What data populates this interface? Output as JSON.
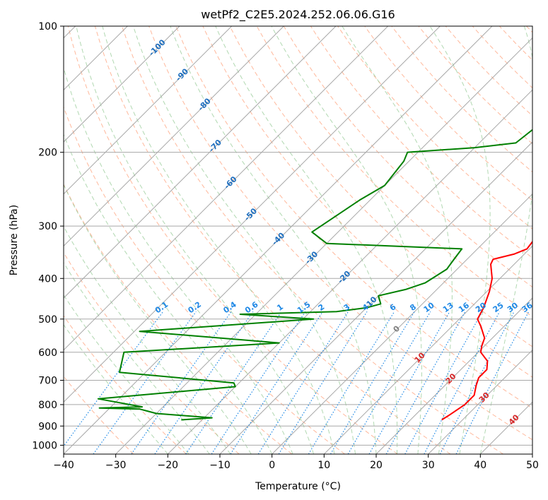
{
  "chart_data": {
    "type": "skew-t",
    "title": "wetPf2_C2E5.2024.252.06.06.G16",
    "xlabel": "Temperature (°C)",
    "ylabel": "Pressure (hPa)",
    "xlim": [
      -40,
      50
    ],
    "ylim": [
      1050,
      100
    ],
    "y_scale": "log",
    "x_ticks": [
      -40,
      -30,
      -20,
      -10,
      0,
      10,
      20,
      30,
      40,
      50
    ],
    "x_tick_labels": [
      "−40",
      "−30",
      "−20",
      "−10",
      "0",
      "10",
      "20",
      "30",
      "40",
      "50"
    ],
    "y_ticks": [
      1000,
      900,
      800,
      700,
      600,
      500,
      400,
      300,
      200,
      100
    ],
    "y_tick_labels": [
      "1000",
      "900",
      "800",
      "700",
      "600",
      "500",
      "400",
      "300",
      "200",
      "100"
    ],
    "grid": true,
    "colors": {
      "temperature": "#ff0000",
      "dewpoint": "#008000",
      "isotherm": "#a8a8a8",
      "dry_adiabat": "#ffa07a",
      "moist_adiabat": "#90c890",
      "mixing_ratio": "#1e88e5",
      "axis": "#000000"
    },
    "series": [
      {
        "points": [
          [
            26.0,
            870
          ],
          [
            26.5,
            850
          ],
          [
            27.5,
            800
          ],
          [
            27.5,
            760
          ],
          [
            26.0,
            720
          ],
          [
            25.0,
            690
          ],
          [
            25.0,
            660
          ],
          [
            23.5,
            630
          ],
          [
            20.5,
            600
          ],
          [
            19.5,
            580
          ],
          [
            18.5,
            555
          ],
          [
            15.5,
            520
          ],
          [
            13.5,
            500
          ],
          [
            12.5,
            470
          ],
          [
            10.5,
            430
          ],
          [
            8.5,
            400
          ],
          [
            5.5,
            370
          ],
          [
            5.0,
            360
          ],
          [
            8.0,
            350
          ],
          [
            9.5,
            340
          ],
          [
            9.0,
            320
          ],
          [
            7.5,
            290
          ],
          [
            6.5,
            260
          ],
          [
            5.5,
            230
          ],
          [
            4.5,
            200
          ],
          [
            3.5,
            175
          ],
          [
            3.0,
            155
          ],
          [
            4.5,
            130
          ],
          [
            7.0,
            120
          ],
          [
            7.5,
            115
          ],
          [
            7.5,
            100
          ]
        ]
      },
      {
        "points": [
          [
            -24.0,
            870
          ],
          [
            -18.5,
            860
          ],
          [
            -30.0,
            840
          ],
          [
            -32.0,
            830
          ],
          [
            -34.0,
            820
          ],
          [
            -42.0,
            815
          ],
          [
            -34.0,
            810
          ],
          [
            -44.0,
            775
          ],
          [
            -20.0,
            725
          ],
          [
            -21.0,
            710
          ],
          [
            -45.0,
            670
          ],
          [
            -48.0,
            600
          ],
          [
            -20.0,
            570
          ],
          [
            -49.0,
            535
          ],
          [
            -18.0,
            500
          ],
          [
            -33.0,
            487
          ],
          [
            -15.0,
            480
          ],
          [
            -10.0,
            470
          ],
          [
            -8.0,
            460
          ],
          [
            -10.0,
            440
          ],
          [
            -6.0,
            425
          ],
          [
            -3.5,
            410
          ],
          [
            -2.0,
            380
          ],
          [
            -2.5,
            360
          ],
          [
            -3.0,
            340
          ],
          [
            -30.0,
            330
          ],
          [
            -35.0,
            310
          ],
          [
            -32.0,
            260
          ],
          [
            -30.0,
            240
          ],
          [
            -31.0,
            210
          ],
          [
            -32.0,
            200
          ],
          [
            -20.0,
            195
          ],
          [
            -13.0,
            190
          ],
          [
            -12.0,
            170
          ],
          [
            -10.5,
            150
          ],
          [
            -6.5,
            135
          ],
          [
            -3.0,
            125
          ],
          [
            1.0,
            110
          ],
          [
            2.0,
            100
          ]
        ]
      }
    ],
    "isotherm_labels": [
      "-100",
      "-90",
      "-80",
      "-70",
      "-60",
      "-50",
      "-40",
      "-30",
      "-20",
      "-10",
      "0",
      "10",
      "20",
      "30",
      "40"
    ],
    "mixing_ratio_labels": [
      "0.1",
      "0.2",
      "0.4",
      "0.6",
      "1",
      "1.5",
      "2",
      "3",
      "4",
      "6",
      "8",
      "10",
      "13",
      "16",
      "20",
      "25",
      "30",
      "36"
    ]
  }
}
